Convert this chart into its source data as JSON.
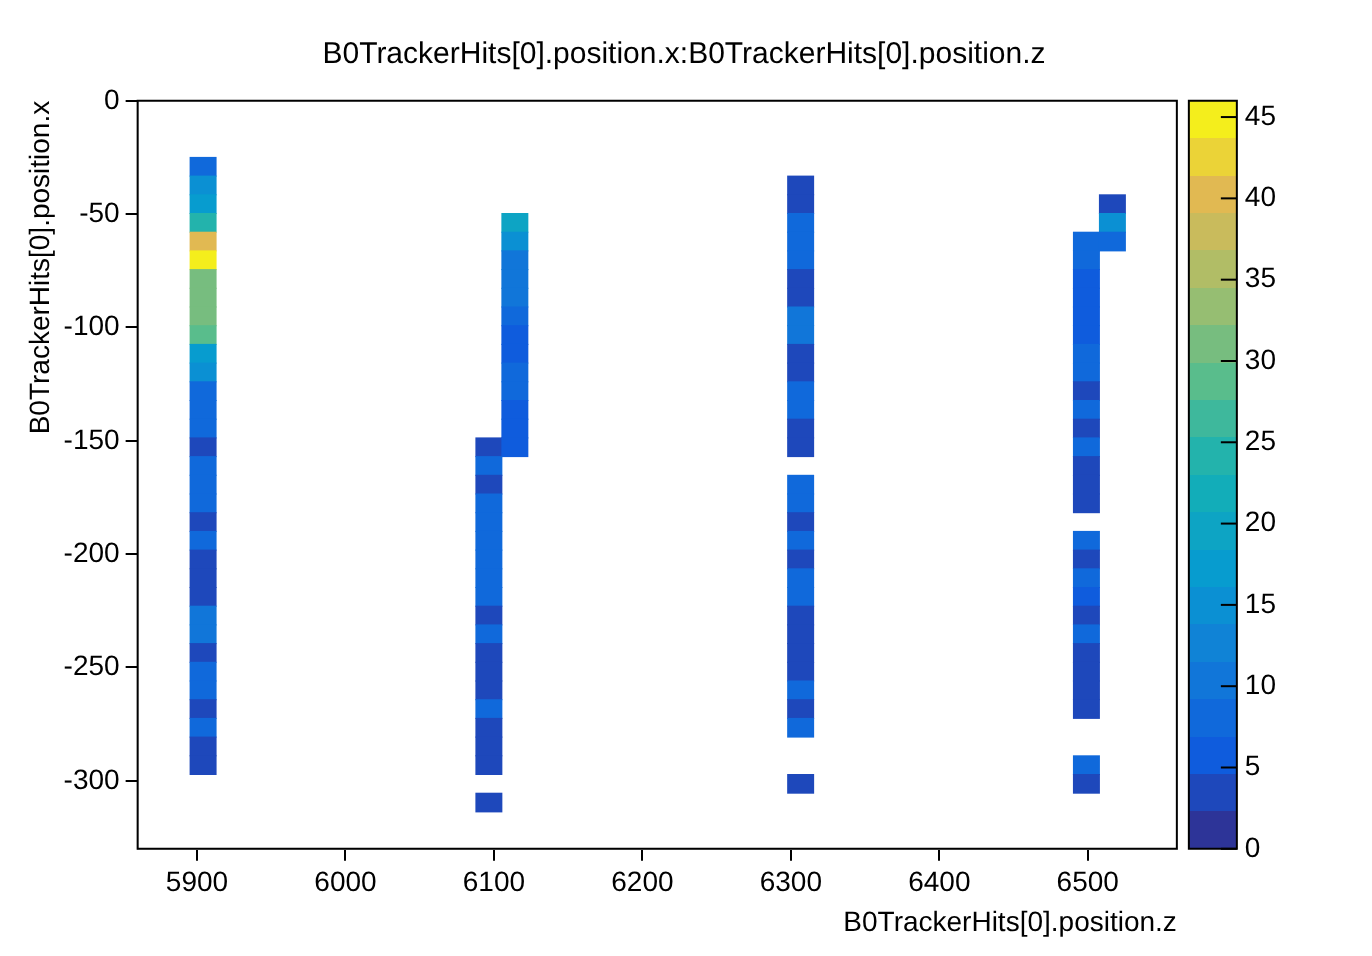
{
  "chart_data": {
    "type": "heatmap",
    "title": "B0TrackerHits[0].position.x:B0TrackerHits[0].position.z",
    "xlabel": "B0TrackerHits[0].position.z",
    "ylabel": "B0TrackerHits[0].position.x",
    "x": [
      5903.75,
      5921.25,
      5938.75,
      5956.25,
      5973.75,
      5991.25,
      6008.75,
      6026.25,
      6043.75,
      6061.25,
      6078.75,
      6096.25,
      6113.75,
      6131.25,
      6148.75,
      6166.25,
      6183.75,
      6201.25,
      6218.75,
      6236.25,
      6253.75,
      6271.25,
      6288.75,
      6306.25,
      6323.75,
      6341.25,
      6358.75,
      6376.25,
      6393.75,
      6411.25,
      6428.75,
      6446.25,
      6463.75,
      6481.25,
      6498.75,
      6516.25
    ],
    "y": [
      -28.875,
      -37.125,
      -45.375,
      -53.625,
      -61.875,
      -70.125,
      -78.375,
      -86.625,
      -94.875,
      -103.125,
      -111.375,
      -119.625,
      -127.875,
      -136.125,
      -144.375,
      -152.625,
      -160.875,
      -169.125,
      -177.375,
      -185.625,
      -193.875,
      -202.125,
      -210.375,
      -218.625,
      -226.875,
      -235.125,
      -243.375,
      -251.625,
      -259.875,
      -268.125,
      -276.375,
      -284.625,
      -292.875,
      -301.125,
      -309.375
    ],
    "cells": [
      [
        7,
        null,
        null,
        null,
        null,
        null,
        null,
        null,
        null,
        null,
        null,
        null,
        null,
        null,
        null,
        null,
        null,
        null,
        null,
        null,
        null,
        null,
        null,
        null,
        null,
        null,
        null,
        null,
        null,
        null,
        null,
        null,
        null,
        null,
        null,
        null
      ],
      [
        15,
        null,
        null,
        null,
        null,
        null,
        null,
        null,
        null,
        null,
        null,
        null,
        null,
        null,
        null,
        null,
        null,
        null,
        null,
        null,
        null,
        null,
        null,
        3,
        null,
        null,
        null,
        null,
        null,
        null,
        null,
        null,
        null,
        null,
        null,
        null
      ],
      [
        17,
        null,
        null,
        null,
        null,
        null,
        null,
        null,
        null,
        null,
        null,
        null,
        null,
        null,
        null,
        null,
        null,
        null,
        null,
        null,
        null,
        null,
        null,
        3,
        null,
        null,
        null,
        null,
        null,
        null,
        null,
        null,
        null,
        null,
        null,
        3
      ],
      [
        25,
        null,
        null,
        null,
        null,
        null,
        null,
        null,
        null,
        null,
        null,
        null,
        20,
        null,
        null,
        null,
        null,
        null,
        null,
        null,
        null,
        null,
        null,
        7,
        null,
        null,
        null,
        null,
        null,
        null,
        null,
        null,
        null,
        null,
        null,
        14
      ],
      [
        40,
        null,
        null,
        null,
        null,
        null,
        null,
        null,
        null,
        null,
        null,
        null,
        15,
        null,
        null,
        null,
        null,
        null,
        null,
        null,
        null,
        null,
        null,
        7,
        null,
        null,
        null,
        null,
        null,
        null,
        null,
        null,
        null,
        null,
        7,
        7
      ],
      [
        46,
        null,
        null,
        null,
        null,
        null,
        null,
        null,
        null,
        null,
        null,
        null,
        10,
        null,
        null,
        null,
        null,
        null,
        null,
        null,
        null,
        null,
        null,
        9,
        null,
        null,
        null,
        null,
        null,
        null,
        null,
        null,
        null,
        null,
        7,
        null
      ],
      [
        32,
        null,
        null,
        null,
        null,
        null,
        null,
        null,
        null,
        null,
        null,
        null,
        10,
        null,
        null,
        null,
        null,
        null,
        null,
        null,
        null,
        null,
        null,
        3,
        null,
        null,
        null,
        null,
        null,
        null,
        null,
        null,
        null,
        null,
        6,
        null
      ],
      [
        32,
        null,
        null,
        null,
        null,
        null,
        null,
        null,
        null,
        null,
        null,
        null,
        10,
        null,
        null,
        null,
        null,
        null,
        null,
        null,
        null,
        null,
        null,
        3,
        null,
        null,
        null,
        null,
        null,
        null,
        null,
        null,
        null,
        null,
        6,
        null
      ],
      [
        32,
        null,
        null,
        null,
        null,
        null,
        null,
        null,
        null,
        null,
        null,
        null,
        8,
        null,
        null,
        null,
        null,
        null,
        null,
        null,
        null,
        null,
        null,
        10,
        null,
        null,
        null,
        null,
        null,
        null,
        null,
        null,
        null,
        null,
        6,
        null
      ],
      [
        28,
        null,
        null,
        null,
        null,
        null,
        null,
        null,
        null,
        null,
        null,
        null,
        5,
        null,
        null,
        null,
        null,
        null,
        null,
        null,
        null,
        null,
        null,
        10,
        null,
        null,
        null,
        null,
        null,
        null,
        null,
        null,
        null,
        null,
        6,
        null
      ],
      [
        18,
        null,
        null,
        null,
        null,
        null,
        null,
        null,
        null,
        null,
        null,
        null,
        5,
        null,
        null,
        null,
        null,
        null,
        null,
        null,
        null,
        null,
        null,
        3,
        null,
        null,
        null,
        null,
        null,
        null,
        null,
        null,
        null,
        null,
        9,
        null
      ],
      [
        15,
        null,
        null,
        null,
        null,
        null,
        null,
        null,
        null,
        null,
        null,
        null,
        9,
        null,
        null,
        null,
        null,
        null,
        null,
        null,
        null,
        null,
        null,
        3,
        null,
        null,
        null,
        null,
        null,
        null,
        null,
        null,
        null,
        null,
        9,
        null
      ],
      [
        9,
        null,
        null,
        null,
        null,
        null,
        null,
        null,
        null,
        null,
        null,
        null,
        8,
        null,
        null,
        null,
        null,
        null,
        null,
        null,
        null,
        null,
        null,
        9,
        null,
        null,
        null,
        null,
        null,
        null,
        null,
        null,
        null,
        null,
        3,
        null
      ],
      [
        8,
        null,
        null,
        null,
        null,
        null,
        null,
        null,
        null,
        null,
        null,
        null,
        6,
        null,
        null,
        null,
        null,
        null,
        null,
        null,
        null,
        null,
        null,
        7,
        null,
        null,
        null,
        null,
        null,
        null,
        null,
        null,
        null,
        null,
        8,
        null
      ],
      [
        8,
        null,
        null,
        null,
        null,
        null,
        null,
        null,
        null,
        null,
        null,
        null,
        5,
        null,
        null,
        null,
        null,
        null,
        null,
        null,
        null,
        null,
        null,
        3,
        null,
        null,
        null,
        null,
        null,
        null,
        null,
        null,
        null,
        null,
        3,
        null
      ],
      [
        3,
        null,
        null,
        null,
        null,
        null,
        null,
        null,
        null,
        null,
        null,
        3,
        5,
        null,
        null,
        null,
        null,
        null,
        null,
        null,
        null,
        null,
        null,
        3,
        null,
        null,
        null,
        null,
        null,
        null,
        null,
        null,
        null,
        null,
        7,
        null
      ],
      [
        7,
        null,
        null,
        null,
        null,
        null,
        null,
        null,
        null,
        null,
        null,
        7,
        null,
        null,
        null,
        null,
        null,
        null,
        null,
        null,
        null,
        null,
        null,
        null,
        null,
        null,
        null,
        null,
        null,
        null,
        null,
        null,
        null,
        null,
        3,
        null
      ],
      [
        7,
        null,
        null,
        null,
        null,
        null,
        null,
        null,
        null,
        null,
        null,
        4,
        null,
        null,
        null,
        null,
        null,
        null,
        null,
        null,
        null,
        null,
        null,
        7,
        null,
        null,
        null,
        null,
        null,
        null,
        null,
        null,
        null,
        null,
        3,
        null
      ],
      [
        9,
        null,
        null,
        null,
        null,
        null,
        null,
        null,
        null,
        null,
        null,
        7,
        null,
        null,
        null,
        null,
        null,
        null,
        null,
        null,
        null,
        null,
        null,
        7,
        null,
        null,
        null,
        null,
        null,
        null,
        null,
        null,
        null,
        null,
        3,
        null
      ],
      [
        3,
        null,
        null,
        null,
        null,
        null,
        null,
        null,
        null,
        null,
        null,
        9,
        null,
        null,
        null,
        null,
        null,
        null,
        null,
        null,
        null,
        null,
        null,
        4,
        null,
        null,
        null,
        null,
        null,
        null,
        null,
        null,
        null,
        null,
        null,
        null
      ],
      [
        9,
        null,
        null,
        null,
        null,
        null,
        null,
        null,
        null,
        null,
        null,
        7,
        null,
        null,
        null,
        null,
        null,
        null,
        null,
        null,
        null,
        null,
        null,
        7,
        null,
        null,
        null,
        null,
        null,
        null,
        null,
        null,
        null,
        null,
        7,
        null
      ],
      [
        3,
        null,
        null,
        null,
        null,
        null,
        null,
        null,
        null,
        null,
        null,
        7,
        null,
        null,
        null,
        null,
        null,
        null,
        null,
        null,
        null,
        null,
        null,
        4,
        null,
        null,
        null,
        null,
        null,
        null,
        null,
        null,
        null,
        null,
        3,
        null
      ],
      [
        3,
        null,
        null,
        null,
        null,
        null,
        null,
        null,
        null,
        null,
        null,
        9,
        null,
        null,
        null,
        null,
        null,
        null,
        null,
        null,
        null,
        null,
        null,
        7,
        null,
        null,
        null,
        null,
        null,
        null,
        null,
        null,
        null,
        null,
        9,
        null
      ],
      [
        3,
        null,
        null,
        null,
        null,
        null,
        null,
        null,
        null,
        null,
        null,
        7,
        null,
        null,
        null,
        null,
        null,
        null,
        null,
        null,
        null,
        null,
        null,
        7,
        null,
        null,
        null,
        null,
        null,
        null,
        null,
        null,
        null,
        null,
        6,
        null
      ],
      [
        10,
        null,
        null,
        null,
        null,
        null,
        null,
        null,
        null,
        null,
        null,
        3,
        null,
        null,
        null,
        null,
        null,
        null,
        null,
        null,
        null,
        null,
        null,
        3,
        null,
        null,
        null,
        null,
        null,
        null,
        null,
        null,
        null,
        null,
        3,
        null
      ],
      [
        10,
        null,
        null,
        null,
        null,
        null,
        null,
        null,
        null,
        null,
        null,
        7,
        null,
        null,
        null,
        null,
        null,
        null,
        null,
        null,
        null,
        null,
        null,
        3,
        null,
        null,
        null,
        null,
        null,
        null,
        null,
        null,
        null,
        null,
        8,
        null
      ],
      [
        3,
        null,
        null,
        null,
        null,
        null,
        null,
        null,
        null,
        null,
        null,
        4,
        null,
        null,
        null,
        null,
        null,
        null,
        null,
        null,
        null,
        null,
        null,
        3,
        null,
        null,
        null,
        null,
        null,
        null,
        null,
        null,
        null,
        null,
        3,
        null
      ],
      [
        7,
        null,
        null,
        null,
        null,
        null,
        null,
        null,
        null,
        null,
        null,
        3,
        null,
        null,
        null,
        null,
        null,
        null,
        null,
        null,
        null,
        null,
        null,
        3,
        null,
        null,
        null,
        null,
        null,
        null,
        null,
        null,
        null,
        null,
        3,
        null
      ],
      [
        8,
        null,
        null,
        null,
        null,
        null,
        null,
        null,
        null,
        null,
        null,
        3,
        null,
        null,
        null,
        null,
        null,
        null,
        null,
        null,
        null,
        null,
        null,
        7,
        null,
        null,
        null,
        null,
        null,
        null,
        null,
        null,
        null,
        null,
        3,
        null
      ],
      [
        4,
        null,
        null,
        null,
        null,
        null,
        null,
        null,
        null,
        null,
        null,
        8,
        null,
        null,
        null,
        null,
        null,
        null,
        null,
        null,
        null,
        null,
        null,
        4,
        null,
        null,
        null,
        null,
        null,
        null,
        null,
        null,
        null,
        null,
        3,
        null
      ],
      [
        7,
        null,
        null,
        null,
        null,
        null,
        null,
        null,
        null,
        null,
        null,
        3,
        null,
        null,
        null,
        null,
        null,
        null,
        null,
        null,
        null,
        null,
        null,
        8,
        null,
        null,
        null,
        null,
        null,
        null,
        null,
        null,
        null,
        null,
        null,
        null
      ],
      [
        3,
        null,
        null,
        null,
        null,
        null,
        null,
        null,
        null,
        null,
        null,
        3,
        null,
        null,
        null,
        null,
        null,
        null,
        null,
        null,
        null,
        null,
        null,
        null,
        null,
        null,
        null,
        null,
        null,
        null,
        null,
        null,
        null,
        null,
        null,
        null
      ],
      [
        3,
        null,
        null,
        null,
        null,
        null,
        null,
        null,
        null,
        null,
        null,
        3,
        null,
        null,
        null,
        null,
        null,
        null,
        null,
        null,
        null,
        null,
        null,
        null,
        null,
        null,
        null,
        null,
        null,
        null,
        null,
        null,
        null,
        null,
        7,
        null
      ],
      [
        null,
        null,
        null,
        null,
        null,
        null,
        null,
        null,
        null,
        null,
        null,
        null,
        null,
        null,
        null,
        null,
        null,
        null,
        null,
        null,
        null,
        null,
        null,
        3,
        null,
        null,
        null,
        null,
        null,
        null,
        null,
        null,
        null,
        null,
        3,
        null
      ],
      [
        null,
        null,
        null,
        null,
        null,
        null,
        null,
        null,
        null,
        null,
        null,
        3,
        null,
        null,
        null,
        null,
        null,
        null,
        null,
        null,
        null,
        null,
        null,
        null,
        null,
        null,
        null,
        null,
        null,
        null,
        null,
        null,
        null,
        null,
        null,
        null
      ]
    ],
    "xlim": [
      5860,
      6560
    ],
    "xticks": [
      5900,
      6000,
      6100,
      6200,
      6300,
      6400,
      6500
    ],
    "ylim": [
      -330,
      0
    ],
    "yticks": [
      -300,
      -250,
      -200,
      -150,
      -100,
      -50,
      0
    ],
    "clim": [
      0,
      46
    ],
    "cticks": [
      0,
      5,
      10,
      15,
      20,
      25,
      30,
      35,
      40,
      45
    ]
  }
}
